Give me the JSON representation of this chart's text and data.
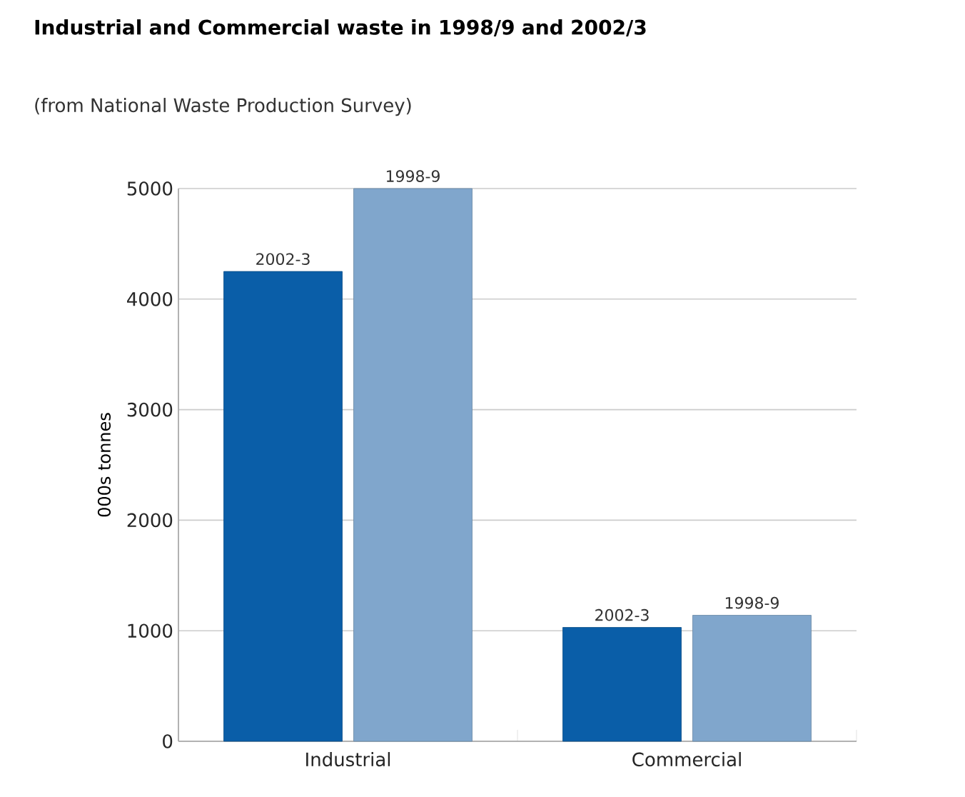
{
  "chart_data": {
    "type": "bar",
    "title": "Industrial and Commercial waste in 1998/9 and 2002/3",
    "subtitle": "(from National Waste Production Survey)",
    "ylabel": "000s tonnes",
    "categories": [
      "Industrial",
      "Commercial"
    ],
    "series": [
      {
        "name": "2002-3",
        "color": "#0a5ea8",
        "values": [
          4250,
          1030
        ]
      },
      {
        "name": "1998-9",
        "color": "#80a6cc",
        "values": [
          5000,
          1140
        ]
      }
    ],
    "ylim": [
      0,
      5000
    ],
    "yticks": [
      0,
      1000,
      2000,
      3000,
      4000,
      5000
    ],
    "grid": "y"
  }
}
